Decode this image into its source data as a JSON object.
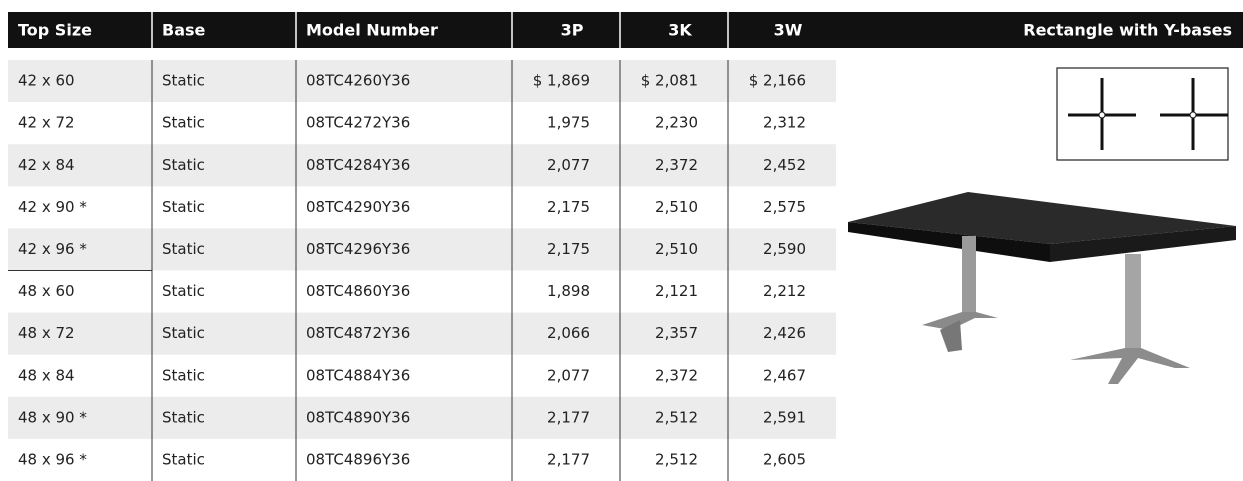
{
  "table": {
    "header": [
      "Top Size",
      "Base",
      "Model Number",
      "3P",
      "3K",
      "3W"
    ],
    "rows": [
      [
        "42 x 60",
        "Static",
        "08TC4260Y36",
        "$ 1,869",
        "$ 2,081",
        "$ 2,166"
      ],
      [
        "42 x 72",
        "Static",
        "08TC4272Y36",
        "1,975",
        "2,230",
        "2,312"
      ],
      [
        "42 x 84",
        "Static",
        "08TC4284Y36",
        "2,077",
        "2,372",
        "2,452"
      ],
      [
        "42 x 90 *",
        "Static",
        "08TC4290Y36",
        "2,175",
        "2,510",
        "2,575"
      ],
      [
        "42 x 96 *",
        "Static",
        "08TC4296Y36",
        "2,175",
        "2,510",
        "2,590"
      ],
      [
        "48 x 60",
        "Static",
        "08TC4860Y36",
        "1,898",
        "2,121",
        "2,212"
      ],
      [
        "48 x 72",
        "Static",
        "08TC4872Y36",
        "2,066",
        "2,357",
        "2,426"
      ],
      [
        "48 x 84",
        "Static",
        "08TC4884Y36",
        "2,077",
        "2,372",
        "2,467"
      ],
      [
        "48 x 90 *",
        "Static",
        "08TC4890Y36",
        "2,177",
        "2,512",
        "2,591"
      ],
      [
        "48 x 96 *",
        "Static",
        "08TC4896Y36",
        "2,177",
        "2,512",
        "2,605"
      ]
    ]
  },
  "product": {
    "title": "Rectangle with Y-bases"
  }
}
